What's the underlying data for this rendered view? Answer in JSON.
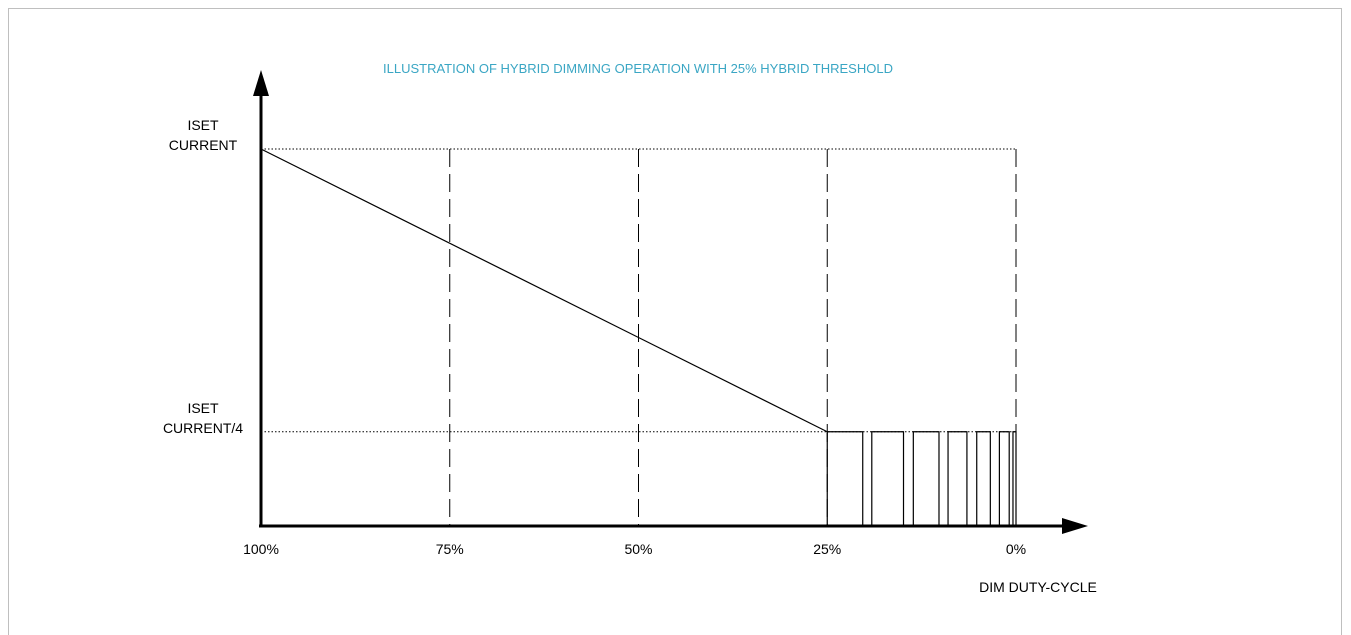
{
  "chart_data": {
    "type": "line",
    "title": "ILLUSTRATION OF HYBRID DIMMING OPERATION WITH 25% HYBRID THRESHOLD",
    "xlabel": "DIM DUTY-CYCLE",
    "x_ticks": [
      {
        "value": 100,
        "label": "100%"
      },
      {
        "value": 75,
        "label": "75%"
      },
      {
        "value": 50,
        "label": "50%"
      },
      {
        "value": 25,
        "label": "25%"
      },
      {
        "value": 0,
        "label": "0%"
      }
    ],
    "xlim": [
      100,
      0
    ],
    "ylim": [
      0,
      1
    ],
    "y_levels": [
      {
        "value": 1,
        "label_lines": [
          "ISET",
          "CURRENT"
        ]
      },
      {
        "value": 0.25,
        "label_lines": [
          "ISET",
          "CURRENT/4"
        ]
      }
    ],
    "analog_segment": {
      "x": [
        100,
        25
      ],
      "y": [
        1,
        0.25
      ]
    },
    "pwm_region": {
      "level": 0.25,
      "x_range": [
        25,
        0
      ],
      "pulses": [
        {
          "x_start": 25,
          "x_end": 20.3
        },
        {
          "x_start": 19.1,
          "x_end": 14.9
        },
        {
          "x_start": 13.6,
          "x_end": 10.2
        },
        {
          "x_start": 9.0,
          "x_end": 6.5
        },
        {
          "x_start": 5.2,
          "x_end": 3.4
        },
        {
          "x_start": 2.2,
          "x_end": 0.9
        },
        {
          "x_start": 0.4,
          "x_end": 0
        }
      ]
    },
    "colors": {
      "title": "#3aa6c4",
      "line": "#000000",
      "axis": "#000000"
    }
  }
}
